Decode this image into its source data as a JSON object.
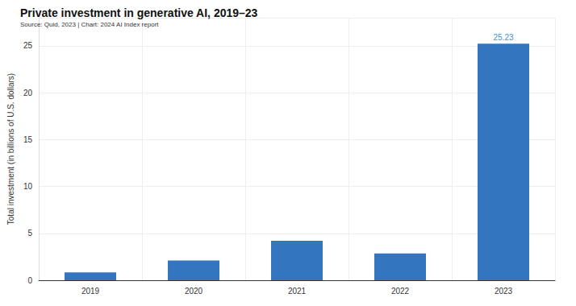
{
  "chart_data": {
    "type": "bar",
    "title": "Private investment in generative AI, 2019–23",
    "subtitle": "Source: Quid, 2023 | Chart: 2024 AI Index report",
    "y_label": "Total investment (in billions of U.S. dollars)",
    "categories": [
      "2019",
      "2020",
      "2021",
      "2022",
      "2023"
    ],
    "values": [
      0.84,
      2.1,
      4.2,
      2.85,
      25.23
    ],
    "value_labels": [
      null,
      null,
      null,
      null,
      "25.23"
    ],
    "color": "#3475bf",
    "ylim": [
      0,
      28
    ],
    "yticks": [
      0,
      5,
      10,
      15,
      20,
      25
    ],
    "grid": true,
    "data_labels": true
  }
}
